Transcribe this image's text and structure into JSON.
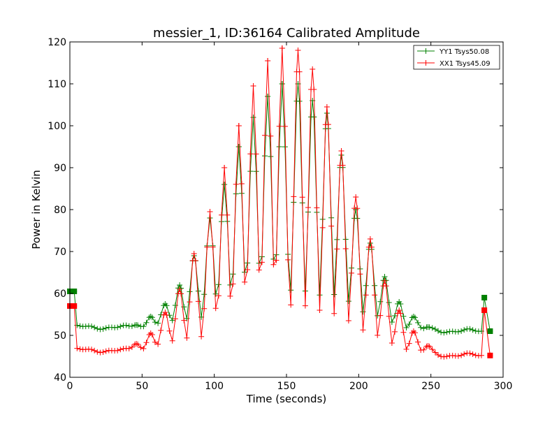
{
  "chart_data": {
    "type": "line",
    "title": "messier_1, ID:36164 Calibrated Amplitude",
    "xlabel": "Time (seconds)",
    "ylabel": "Power in Kelvin",
    "xlim": [
      0,
      300
    ],
    "ylim": [
      40,
      120
    ],
    "xticks": [
      0,
      50,
      100,
      150,
      200,
      250,
      300
    ],
    "yticks": [
      40,
      50,
      60,
      70,
      80,
      90,
      100,
      110,
      120
    ],
    "grid": false,
    "legend_position": "top-right",
    "series": [
      {
        "name": "YY1 Tsys50.08",
        "color": "#008000",
        "baseline_start": 52,
        "baseline_end": 51,
        "endpoints": [
          [
            0,
            60.5
          ],
          [
            3,
            60.5
          ],
          [
            287,
            59
          ],
          [
            291,
            51
          ]
        ],
        "peaks": [
          [
            46,
            52.5
          ],
          [
            56,
            54.5
          ],
          [
            66,
            57.5
          ],
          [
            76,
            62
          ],
          [
            86,
            69
          ],
          [
            97,
            78
          ],
          [
            107,
            86
          ],
          [
            117,
            95
          ],
          [
            127,
            102
          ],
          [
            137,
            107
          ],
          [
            147,
            110
          ],
          [
            158,
            110
          ],
          [
            168,
            106
          ],
          [
            178,
            103
          ],
          [
            188,
            93
          ],
          [
            198,
            80
          ],
          [
            208,
            72
          ],
          [
            218,
            64
          ],
          [
            228,
            58
          ],
          [
            238,
            54.5
          ],
          [
            248,
            52
          ]
        ]
      },
      {
        "name": "XX1 Tsys45.09",
        "color": "#ff0000",
        "baseline_start": 46.5,
        "baseline_end": 45.2,
        "endpoints": [
          [
            0,
            57
          ],
          [
            3,
            57
          ],
          [
            287,
            56
          ],
          [
            291,
            45.2
          ]
        ],
        "peaks": [
          [
            46,
            48
          ],
          [
            56,
            50.5
          ],
          [
            66,
            55.5
          ],
          [
            76,
            61
          ],
          [
            86,
            69.5
          ],
          [
            97,
            79.5
          ],
          [
            107,
            90
          ],
          [
            117,
            100
          ],
          [
            127,
            109.5
          ],
          [
            137,
            115.5
          ],
          [
            147,
            118.5
          ],
          [
            158,
            118
          ],
          [
            168,
            113.5
          ],
          [
            178,
            104.5
          ],
          [
            188,
            94
          ],
          [
            198,
            83
          ],
          [
            208,
            73
          ],
          [
            218,
            63
          ],
          [
            228,
            56
          ],
          [
            238,
            51
          ],
          [
            248,
            47.5
          ]
        ]
      }
    ]
  }
}
